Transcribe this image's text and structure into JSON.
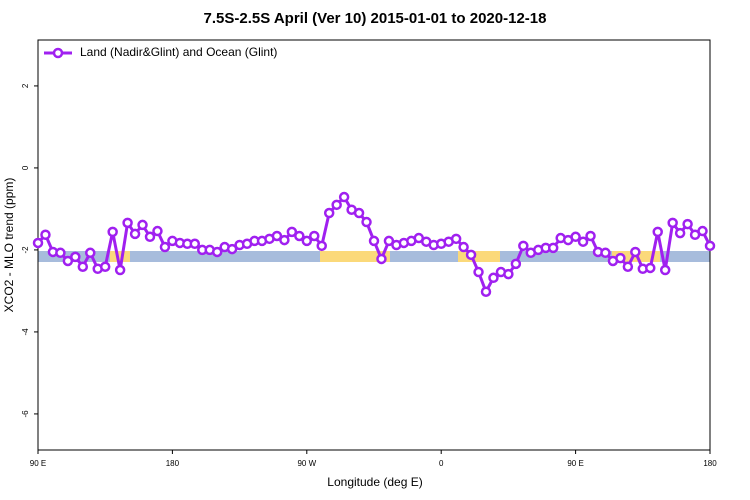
{
  "chart_data": {
    "type": "line",
    "title": "7.5S-2.5S April (Ver 10)   2015-01-01 to 2020-12-18",
    "x_label": "Longitude (deg E)",
    "y_label": "XCO2 - MLO trend (ppm)",
    "xlim": [
      90,
      540
    ],
    "xticks": [
      {
        "value": 90,
        "label": "90 E"
      },
      {
        "value": 180,
        "label": "180"
      },
      {
        "value": 270,
        "label": "90 W"
      },
      {
        "value": 360,
        "label": "0"
      },
      {
        "value": 450,
        "label": "90 E"
      },
      {
        "value": 540,
        "label": "180"
      }
    ],
    "ylim": [
      -6.88,
      3.12
    ],
    "yticks": [
      -6,
      -4,
      -2,
      0,
      2
    ],
    "legend": "top-left",
    "series": [
      {
        "name": "Land (Nadir&Glint) and Ocean (Glint)",
        "color": "#a020f0",
        "x": [
          90,
          95,
          100,
          105,
          110,
          115,
          120,
          125,
          130,
          135,
          140,
          145,
          150,
          155,
          160,
          165,
          170,
          175,
          180,
          185,
          190,
          195,
          200,
          205,
          210,
          215,
          220,
          225,
          230,
          235,
          240,
          245,
          250,
          255,
          260,
          265,
          270,
          275,
          280,
          285,
          290,
          295,
          300,
          305,
          310,
          315,
          320,
          325,
          330,
          335,
          340,
          345,
          350,
          355,
          360,
          365,
          370,
          375,
          380,
          385,
          390,
          395,
          400,
          405,
          410,
          415,
          420,
          425,
          430,
          435,
          440,
          445,
          450,
          455,
          460,
          465,
          470,
          475,
          480,
          485,
          490,
          495,
          500,
          505,
          510,
          515,
          520,
          525,
          530,
          535,
          540
        ],
        "values": [
          -1.83,
          -1.63,
          -2.05,
          -2.07,
          -2.27,
          -2.17,
          -2.41,
          -2.07,
          -2.46,
          -2.41,
          -1.56,
          -2.49,
          -1.34,
          -1.61,
          -1.39,
          -1.68,
          -1.54,
          -1.93,
          -1.78,
          -1.83,
          -1.85,
          -1.85,
          -2.0,
          -2.0,
          -2.05,
          -1.93,
          -1.98,
          -1.88,
          -1.85,
          -1.78,
          -1.78,
          -1.73,
          -1.66,
          -1.76,
          -1.56,
          -1.66,
          -1.78,
          -1.66,
          -1.9,
          -1.1,
          -0.9,
          -0.71,
          -1.02,
          -1.1,
          -1.32,
          -1.78,
          -2.22,
          -1.78,
          -1.88,
          -1.83,
          -1.78,
          -1.71,
          -1.8,
          -1.88,
          -1.85,
          -1.8,
          -1.73,
          -1.93,
          -2.12,
          -2.54,
          -3.02,
          -2.68,
          -2.54,
          -2.59,
          -2.34,
          -1.9,
          -2.07,
          -2.0,
          -1.95,
          -1.95,
          -1.71,
          -1.76,
          -1.68,
          -1.8,
          -1.66,
          -2.05,
          -2.07,
          -2.27,
          -2.2,
          -2.41,
          -2.05,
          -2.46,
          -2.44,
          -1.56,
          -2.49,
          -1.34,
          -1.59,
          -1.37,
          -1.63,
          -1.54,
          -1.9
        ]
      }
    ]
  }
}
